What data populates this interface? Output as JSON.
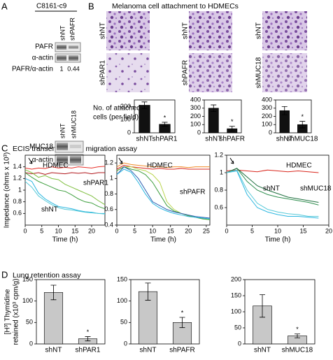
{
  "panel_labels": [
    "A",
    "B",
    "C",
    "D"
  ],
  "blot": {
    "cell_line": "C8161-c9",
    "lanes_top": [
      "shNT",
      "shPAFR"
    ],
    "rows_top": [
      "PAFR",
      "α-actin",
      "PAFR/α-actin"
    ],
    "ratios": [
      1,
      0.44
    ],
    "lanes_bottom": [
      "shNT",
      "shMUC18"
    ],
    "rows_bottom": [
      "MUC18",
      "α-actin"
    ]
  },
  "attachment": {
    "title": "Melanoma cell attachment to HDMECs",
    "image_labels": [
      [
        "shNT",
        "shPAR1"
      ],
      [
        "shNT",
        "shPAFR"
      ],
      [
        "shNT",
        "shMUC18"
      ]
    ],
    "ylabel": [
      "No. of attached",
      "cells (per field)"
    ]
  },
  "ecis": {
    "title": "ECIS transendothelial migration assay",
    "ylabel": "Impedance (ohms x 10³)"
  },
  "lung": {
    "title": "Lung retention assay",
    "ylabel": [
      "[H³] Thymidine",
      "retained (x10³ cpm/g)"
    ]
  },
  "chart_data": [
    {
      "type": "bar",
      "categories": [
        "shNT",
        "shPAR1"
      ],
      "values": [
        210,
        65
      ],
      "errors": [
        25,
        15
      ],
      "color": "#111111",
      "ylim": [
        0,
        250
      ],
      "yticks": [
        0,
        100,
        200
      ],
      "asterisk": "*"
    },
    {
      "type": "bar",
      "categories": [
        "shNT",
        "shPAFR"
      ],
      "values": [
        300,
        50
      ],
      "errors": [
        40,
        30
      ],
      "color": "#111111",
      "ylim": [
        0,
        400
      ],
      "yticks": [
        0,
        100,
        200,
        300,
        400
      ],
      "asterisk": "*"
    },
    {
      "type": "bar",
      "categories": [
        "shNT",
        "shMUC18"
      ],
      "values": [
        270,
        100
      ],
      "errors": [
        50,
        40
      ],
      "color": "#111111",
      "ylim": [
        0,
        400
      ],
      "yticks": [
        0,
        100,
        200,
        300,
        400
      ],
      "asterisk": "*"
    },
    {
      "type": "line",
      "xlabel": "Time (h)",
      "x": [
        0,
        2,
        4,
        6,
        8,
        10,
        12,
        14,
        16,
        18,
        20,
        22,
        24
      ],
      "xlim": [
        0,
        24
      ],
      "xticks": [
        0,
        5,
        10,
        15,
        20
      ],
      "ylim": [
        0.4,
        1.6
      ],
      "yticks": [
        0.6,
        0.8,
        1,
        1.2,
        1.4
      ],
      "annotations": [
        "HDMEC",
        "shPAR1",
        "shNT"
      ],
      "series": [
        {
          "color": "#e8312a",
          "values": [
            1.38,
            1.36,
            1.38,
            1.37,
            1.4,
            1.38,
            1.39,
            1.38,
            1.4,
            1.39,
            1.38,
            1.4,
            1.41
          ]
        },
        {
          "color": "#b0151a",
          "values": [
            1.3,
            1.28,
            1.3,
            1.27,
            1.3,
            1.29,
            1.28,
            1.3,
            1.29,
            1.3,
            1.28,
            1.3,
            1.3
          ]
        },
        {
          "color": "#7fbf3f",
          "values": [
            1.35,
            1.3,
            1.22,
            1.25,
            1.2,
            1.18,
            1.1,
            1.05,
            1.0,
            0.95,
            0.9,
            0.82,
            0.75
          ]
        },
        {
          "color": "#3f9f3f",
          "values": [
            1.3,
            1.22,
            1.15,
            1.1,
            1.05,
            1.0,
            0.98,
            0.92,
            0.85,
            0.8,
            0.78,
            0.72,
            0.68
          ]
        },
        {
          "color": "#29b6e0",
          "values": [
            1.2,
            1.15,
            0.95,
            0.85,
            0.78,
            0.72,
            0.7,
            0.68,
            0.65,
            0.63,
            0.62,
            0.6,
            0.6
          ]
        },
        {
          "color": "#56c9d8",
          "values": [
            1.15,
            1.05,
            0.9,
            0.82,
            0.75,
            0.7,
            0.67,
            0.66,
            0.64,
            0.62,
            0.61,
            0.6,
            0.59
          ]
        }
      ]
    },
    {
      "type": "line",
      "xlabel": "Time (h)",
      "x": [
        0,
        2,
        4,
        6,
        8,
        10,
        12,
        14,
        16,
        18,
        20,
        22,
        24,
        26
      ],
      "xlim": [
        0,
        26
      ],
      "xticks": [
        0,
        5,
        10,
        15,
        20,
        25
      ],
      "ylim": [
        0.4,
        1.3
      ],
      "yticks": [
        0.4,
        0.6,
        0.8,
        1,
        1.2
      ],
      "annotations": [
        "HDMEC",
        "shPAFR"
      ],
      "series": [
        {
          "color": "#f08a24",
          "values": [
            1.15,
            1.2,
            1.18,
            1.17,
            1.16,
            1.15,
            1.15,
            1.14,
            1.15,
            1.15,
            1.14,
            1.15,
            1.15,
            1.15
          ]
        },
        {
          "color": "#d9261c",
          "values": [
            1.12,
            1.17,
            1.15,
            1.14,
            1.13,
            1.12,
            1.13,
            1.12,
            1.12,
            1.13,
            1.12,
            1.12,
            1.12,
            1.12
          ]
        },
        {
          "color": "#b8d44a",
          "values": [
            1.1,
            1.15,
            1.15,
            1.12,
            1.1,
            1.05,
            0.95,
            0.7,
            0.6,
            0.55,
            0.52,
            0.5,
            0.48,
            0.47
          ]
        },
        {
          "color": "#3f9f3f",
          "values": [
            1.1,
            1.15,
            1.12,
            1.1,
            1.05,
            0.95,
            0.8,
            0.65,
            0.58,
            0.55,
            0.52,
            0.5,
            0.48,
            0.47
          ]
        },
        {
          "color": "#2a5db0",
          "values": [
            1.05,
            1.15,
            1.1,
            1.0,
            0.85,
            0.7,
            0.65,
            0.6,
            0.57,
            0.55,
            0.53,
            0.51,
            0.5,
            0.49
          ]
        },
        {
          "color": "#29b6e0",
          "values": [
            1.05,
            1.12,
            1.08,
            0.95,
            0.8,
            0.68,
            0.62,
            0.58,
            0.55,
            0.53,
            0.51,
            0.5,
            0.49,
            0.48
          ]
        }
      ]
    },
    {
      "type": "line",
      "xlabel": "Time (h)",
      "x": [
        0,
        2,
        4,
        6,
        8,
        10,
        12,
        14,
        16,
        18
      ],
      "xlim": [
        0,
        20
      ],
      "xticks": [
        0,
        5,
        10,
        15,
        20
      ],
      "ylim": [
        0.4,
        1.2
      ],
      "yticks": [
        0.6,
        0.8,
        1,
        1.2
      ],
      "annotations": [
        "HDMEC",
        "shNT",
        "shMUC18"
      ],
      "series": [
        {
          "color": "#d9261c",
          "values": [
            1.02,
            1.03,
            1.02,
            1.01,
            1.03,
            1.02,
            1.01,
            1.02,
            1.01,
            1.0
          ]
        },
        {
          "color": "#2f8f4f",
          "values": [
            1.0,
            1.05,
            0.9,
            0.8,
            0.75,
            0.72,
            0.7,
            0.68,
            0.66,
            0.63
          ]
        },
        {
          "color": "#1f6f3f",
          "values": [
            1.0,
            1.05,
            0.95,
            0.85,
            0.8,
            0.76,
            0.72,
            0.7,
            0.68,
            0.66
          ]
        },
        {
          "color": "#29b6e0",
          "values": [
            1.0,
            1.02,
            0.75,
            0.6,
            0.55,
            0.52,
            0.5,
            0.5,
            0.49,
            0.48
          ]
        },
        {
          "color": "#56c9d8",
          "values": [
            1.0,
            1.03,
            0.8,
            0.65,
            0.58,
            0.55,
            0.53,
            0.52,
            0.5,
            0.5
          ]
        }
      ]
    },
    {
      "type": "bar",
      "categories": [
        "shNT",
        "shPAR1"
      ],
      "values": [
        120,
        12
      ],
      "errors": [
        17,
        5
      ],
      "color": "#c8c8c8",
      "ylim": [
        0,
        150
      ],
      "yticks": [
        0,
        50,
        100,
        150
      ],
      "asterisk": "*"
    },
    {
      "type": "bar",
      "categories": [
        "shNT",
        "shPAFR"
      ],
      "values": [
        122,
        50
      ],
      "errors": [
        20,
        12
      ],
      "color": "#c8c8c8",
      "ylim": [
        0,
        150
      ],
      "yticks": [
        0,
        50,
        100,
        150
      ],
      "asterisk": "*"
    },
    {
      "type": "bar",
      "categories": [
        "shNT",
        "shMUC18"
      ],
      "values": [
        118,
        25
      ],
      "errors": [
        35,
        6
      ],
      "color": "#c8c8c8",
      "ylim": [
        0,
        200
      ],
      "yticks": [
        0,
        50,
        100,
        150,
        200
      ],
      "asterisk": "*"
    }
  ]
}
